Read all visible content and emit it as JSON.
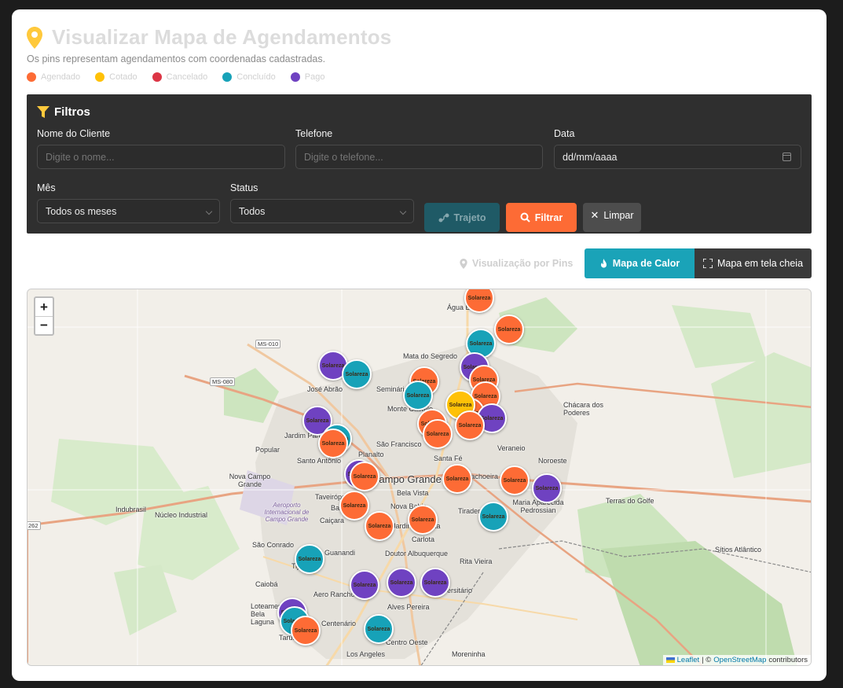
{
  "header": {
    "title": "Visualizar Mapa de Agendamentos",
    "subtitle": "Os pins representam agendamentos com coordenadas cadastradas.",
    "legend": [
      {
        "label": "Agendado",
        "color": "#fd6b35"
      },
      {
        "label": "Cotado",
        "color": "#ffc107"
      },
      {
        "label": "Cancelado",
        "color": "#dc3545"
      },
      {
        "label": "Concluído",
        "color": "#17a2b8"
      },
      {
        "label": "Pago",
        "color": "#6f42c1"
      }
    ]
  },
  "filters": {
    "title": "Filtros",
    "nome_label": "Nome do Cliente",
    "nome_placeholder": "Digite o nome...",
    "telefone_label": "Telefone",
    "telefone_placeholder": "Digite o telefone...",
    "data_label": "Data",
    "data_value": "dd/mm/aaaa",
    "mes_label": "Mês",
    "mes_value": "Todos os meses",
    "status_label": "Status",
    "status_value": "Todos",
    "trajeto_label": "Trajeto",
    "filtrar_label": "Filtrar",
    "limpar_label": "Limpar"
  },
  "view": {
    "pins_label": "Visualização por Pins",
    "heat_label": "Mapa de Calor",
    "full_label": "Mapa em tela cheia"
  },
  "map": {
    "attribution_leaflet": "Leaflet",
    "attribution_sep": "| ©",
    "attribution_osm": "OpenStreetMap",
    "attribution_tail": "contributors",
    "zoom_in": "+",
    "zoom_out": "−",
    "pin_logo_text": "Solareza",
    "places": [
      "Água Boa",
      "Mata do Segredo",
      "José Abrão",
      "Seminário",
      "Monte Castelo",
      "Jardim Panorama",
      "Popular",
      "Santo Antônio",
      "Planalto",
      "São Francisco",
      "Santa Fé",
      "Veraneio",
      "Noroeste",
      "Chácara dos Poderes",
      "Nova Campo Grande",
      "Campo Grande",
      "Bela Vista",
      "Cachoeira",
      "Maria Aparecida Pedrossian",
      "Terras do Golfe",
      "Aeroporto Internacional de Campo Grande",
      "Núcleo Industrial",
      "Indubrasil",
      "Taveirópolis",
      "Bandeira",
      "Caiçara",
      "Nova Bahia",
      "Jardim Paulista",
      "Tiradentes",
      "Carlota",
      "São Conrado",
      "Guanandi",
      "Doutor Albuquerque",
      "Rita Vieira",
      "Sítios Atlântico",
      "Tijuca",
      "Caiobá",
      "Aero Rancho",
      "Universitário",
      "Loteamento Bela Laguna",
      "Centenário",
      "Alves Pereira",
      "Centro Oeste",
      "Taruma",
      "Los Angeles",
      "Moreninha"
    ],
    "road_labels": [
      "MS-010",
      "MS-080",
      "262"
    ],
    "pins": [
      {
        "status": "agendado"
      },
      {
        "status": "agendado"
      },
      {
        "status": "concluido"
      },
      {
        "status": "pago"
      },
      {
        "status": "agendado"
      },
      {
        "status": "pago"
      },
      {
        "status": "concluido"
      },
      {
        "status": "agendado"
      },
      {
        "status": "agendado"
      },
      {
        "status": "concluido"
      },
      {
        "status": "agendado"
      },
      {
        "status": "cotado"
      },
      {
        "status": "pago"
      },
      {
        "status": "agendado"
      },
      {
        "status": "agendado"
      },
      {
        "status": "agendado"
      },
      {
        "status": "pago"
      },
      {
        "status": "concluido"
      },
      {
        "status": "agendado"
      },
      {
        "status": "pago"
      },
      {
        "status": "agendado"
      },
      {
        "status": "agendado"
      },
      {
        "status": "agendado"
      },
      {
        "status": "pago"
      },
      {
        "status": "concluido"
      },
      {
        "status": "agendado"
      },
      {
        "status": "agendado"
      },
      {
        "status": "agendado"
      },
      {
        "status": "concluido"
      },
      {
        "status": "pago"
      },
      {
        "status": "pago"
      },
      {
        "status": "pago"
      },
      {
        "status": "pago"
      },
      {
        "status": "concluido"
      },
      {
        "status": "agendado"
      },
      {
        "status": "concluido"
      }
    ]
  }
}
